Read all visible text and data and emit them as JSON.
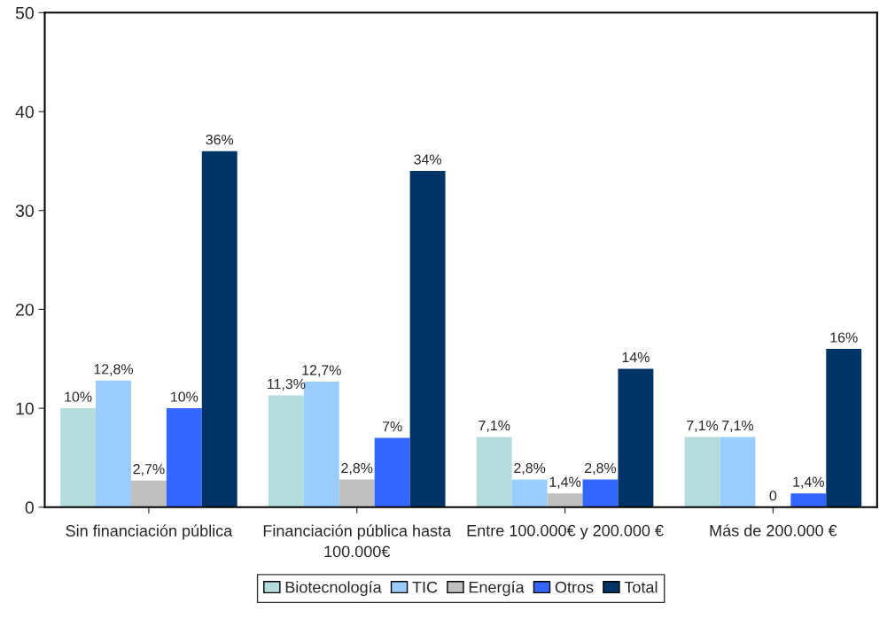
{
  "chart_data": {
    "type": "bar",
    "categories": [
      "Sin financiación pública",
      "Financiación pública hasta 100.000€",
      "Entre 100.000€ y 200.000 €",
      "Más de 200.000 €"
    ],
    "series": [
      {
        "name": "Biotecnología",
        "color": "#b4dcdc",
        "values": [
          10,
          11.3,
          7.1,
          7.1
        ],
        "value_labels": [
          "10%",
          "11,3%",
          "7,1%",
          "7,1%"
        ]
      },
      {
        "name": "TIC",
        "color": "#99ccff",
        "values": [
          12.8,
          12.7,
          2.8,
          7.1
        ],
        "value_labels": [
          "12,8%",
          "12,7%",
          "2,8%",
          "7,1%"
        ]
      },
      {
        "name": "Energía",
        "color": "#c0c0c0",
        "values": [
          2.7,
          2.8,
          1.4,
          0
        ],
        "value_labels": [
          "2,7%",
          "2,8%",
          "1,4%",
          "0"
        ]
      },
      {
        "name": "Otros",
        "color": "#3366ff",
        "values": [
          10,
          7,
          2.8,
          1.4
        ],
        "value_labels": [
          "10%",
          "7%",
          "2,8%",
          "1,4%"
        ]
      },
      {
        "name": "Total",
        "color": "#003366",
        "values": [
          36,
          34,
          14,
          16
        ],
        "value_labels": [
          "36%",
          "34%",
          "14%",
          "16%"
        ]
      }
    ],
    "ylim": [
      0,
      50
    ],
    "yticks": [
      0,
      10,
      20,
      30,
      40,
      50
    ],
    "grid": false,
    "legend": "bottom"
  }
}
